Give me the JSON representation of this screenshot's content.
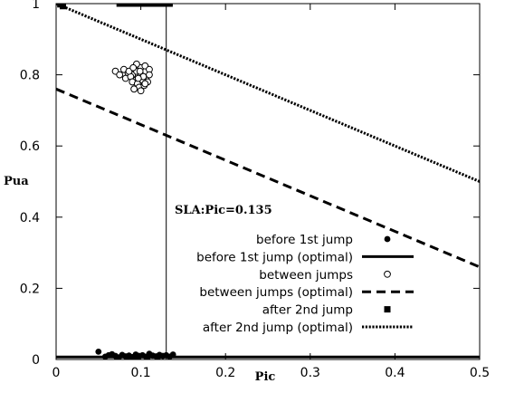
{
  "chart_data": {
    "type": "scatter",
    "xlabel": "Pic",
    "ylabel": "Pua",
    "xlim": [
      0,
      0.5
    ],
    "ylim": [
      0,
      1
    ],
    "x_ticks": [
      "0",
      "0.1",
      "0.2",
      "0.3",
      "0.4",
      "0.5"
    ],
    "y_ticks": [
      "0",
      "0.2",
      "0.4",
      "0.6",
      "0.8",
      "1"
    ],
    "grid": false,
    "legend_position": "bottom-right",
    "annotation": {
      "text": "SLA:Pic=0.135",
      "x": 0.135,
      "y": 0.41
    },
    "vertical_line_x": 0.13,
    "series": [
      {
        "name": "before 1st jump",
        "kind": "points",
        "marker": "filled-circle",
        "x": [
          0.05,
          0.058,
          0.062,
          0.066,
          0.07,
          0.074,
          0.078,
          0.082,
          0.086,
          0.09,
          0.094,
          0.098,
          0.102,
          0.106,
          0.11,
          0.114,
          0.118,
          0.122,
          0.126,
          0.13,
          0.134,
          0.138,
          0.072,
          0.084,
          0.096,
          0.108,
          0.12
        ],
        "y": [
          0.022,
          0.008,
          0.012,
          0.015,
          0.01,
          0.006,
          0.013,
          0.009,
          0.011,
          0.007,
          0.014,
          0.01,
          0.012,
          0.008,
          0.016,
          0.011,
          0.009,
          0.013,
          0.01,
          0.012,
          0.008,
          0.014,
          0.004,
          0.005,
          0.004,
          0.006,
          0.005
        ]
      },
      {
        "name": "before 1st jump (optimal)",
        "kind": "line",
        "style": "solid",
        "x": [
          0,
          0.5
        ],
        "y": [
          0.007,
          0.007
        ]
      },
      {
        "name": "between jumps",
        "kind": "points",
        "marker": "open-circle",
        "x": [
          0.07,
          0.075,
          0.08,
          0.085,
          0.09,
          0.095,
          0.1,
          0.105,
          0.11,
          0.082,
          0.088,
          0.094,
          0.1,
          0.106,
          0.09,
          0.096,
          0.102,
          0.108,
          0.098,
          0.104,
          0.1,
          0.092,
          0.086,
          0.11,
          0.095,
          0.105,
          0.099,
          0.103,
          0.091,
          0.097
        ],
        "y": [
          0.81,
          0.8,
          0.815,
          0.805,
          0.8,
          0.81,
          0.82,
          0.825,
          0.815,
          0.79,
          0.795,
          0.785,
          0.8,
          0.79,
          0.78,
          0.775,
          0.785,
          0.78,
          0.765,
          0.77,
          0.755,
          0.76,
          0.81,
          0.8,
          0.83,
          0.775,
          0.81,
          0.795,
          0.82,
          0.79
        ]
      },
      {
        "name": "between jumps (optimal)",
        "kind": "line",
        "style": "dashed",
        "x": [
          0,
          0.5
        ],
        "y": [
          0.76,
          0.26
        ]
      },
      {
        "name": "after 2nd jump",
        "kind": "points",
        "marker": "filled-square",
        "x": [
          0.005,
          0.008,
          0.075,
          0.078,
          0.082,
          0.086,
          0.09,
          0.094,
          0.098,
          0.102,
          0.106,
          0.11,
          0.114,
          0.118,
          0.122,
          0.126,
          0.13,
          0.134
        ],
        "y": [
          0.998,
          0.993,
          1.0,
          1.0,
          1.0,
          1.0,
          1.0,
          1.0,
          1.0,
          1.0,
          1.0,
          1.0,
          1.0,
          1.0,
          1.0,
          1.0,
          1.0,
          1.0
        ]
      },
      {
        "name": "after 2nd jump (optimal)",
        "kind": "line",
        "style": "dotted",
        "x": [
          0,
          0.5
        ],
        "y": [
          1.0,
          0.5
        ]
      }
    ]
  }
}
